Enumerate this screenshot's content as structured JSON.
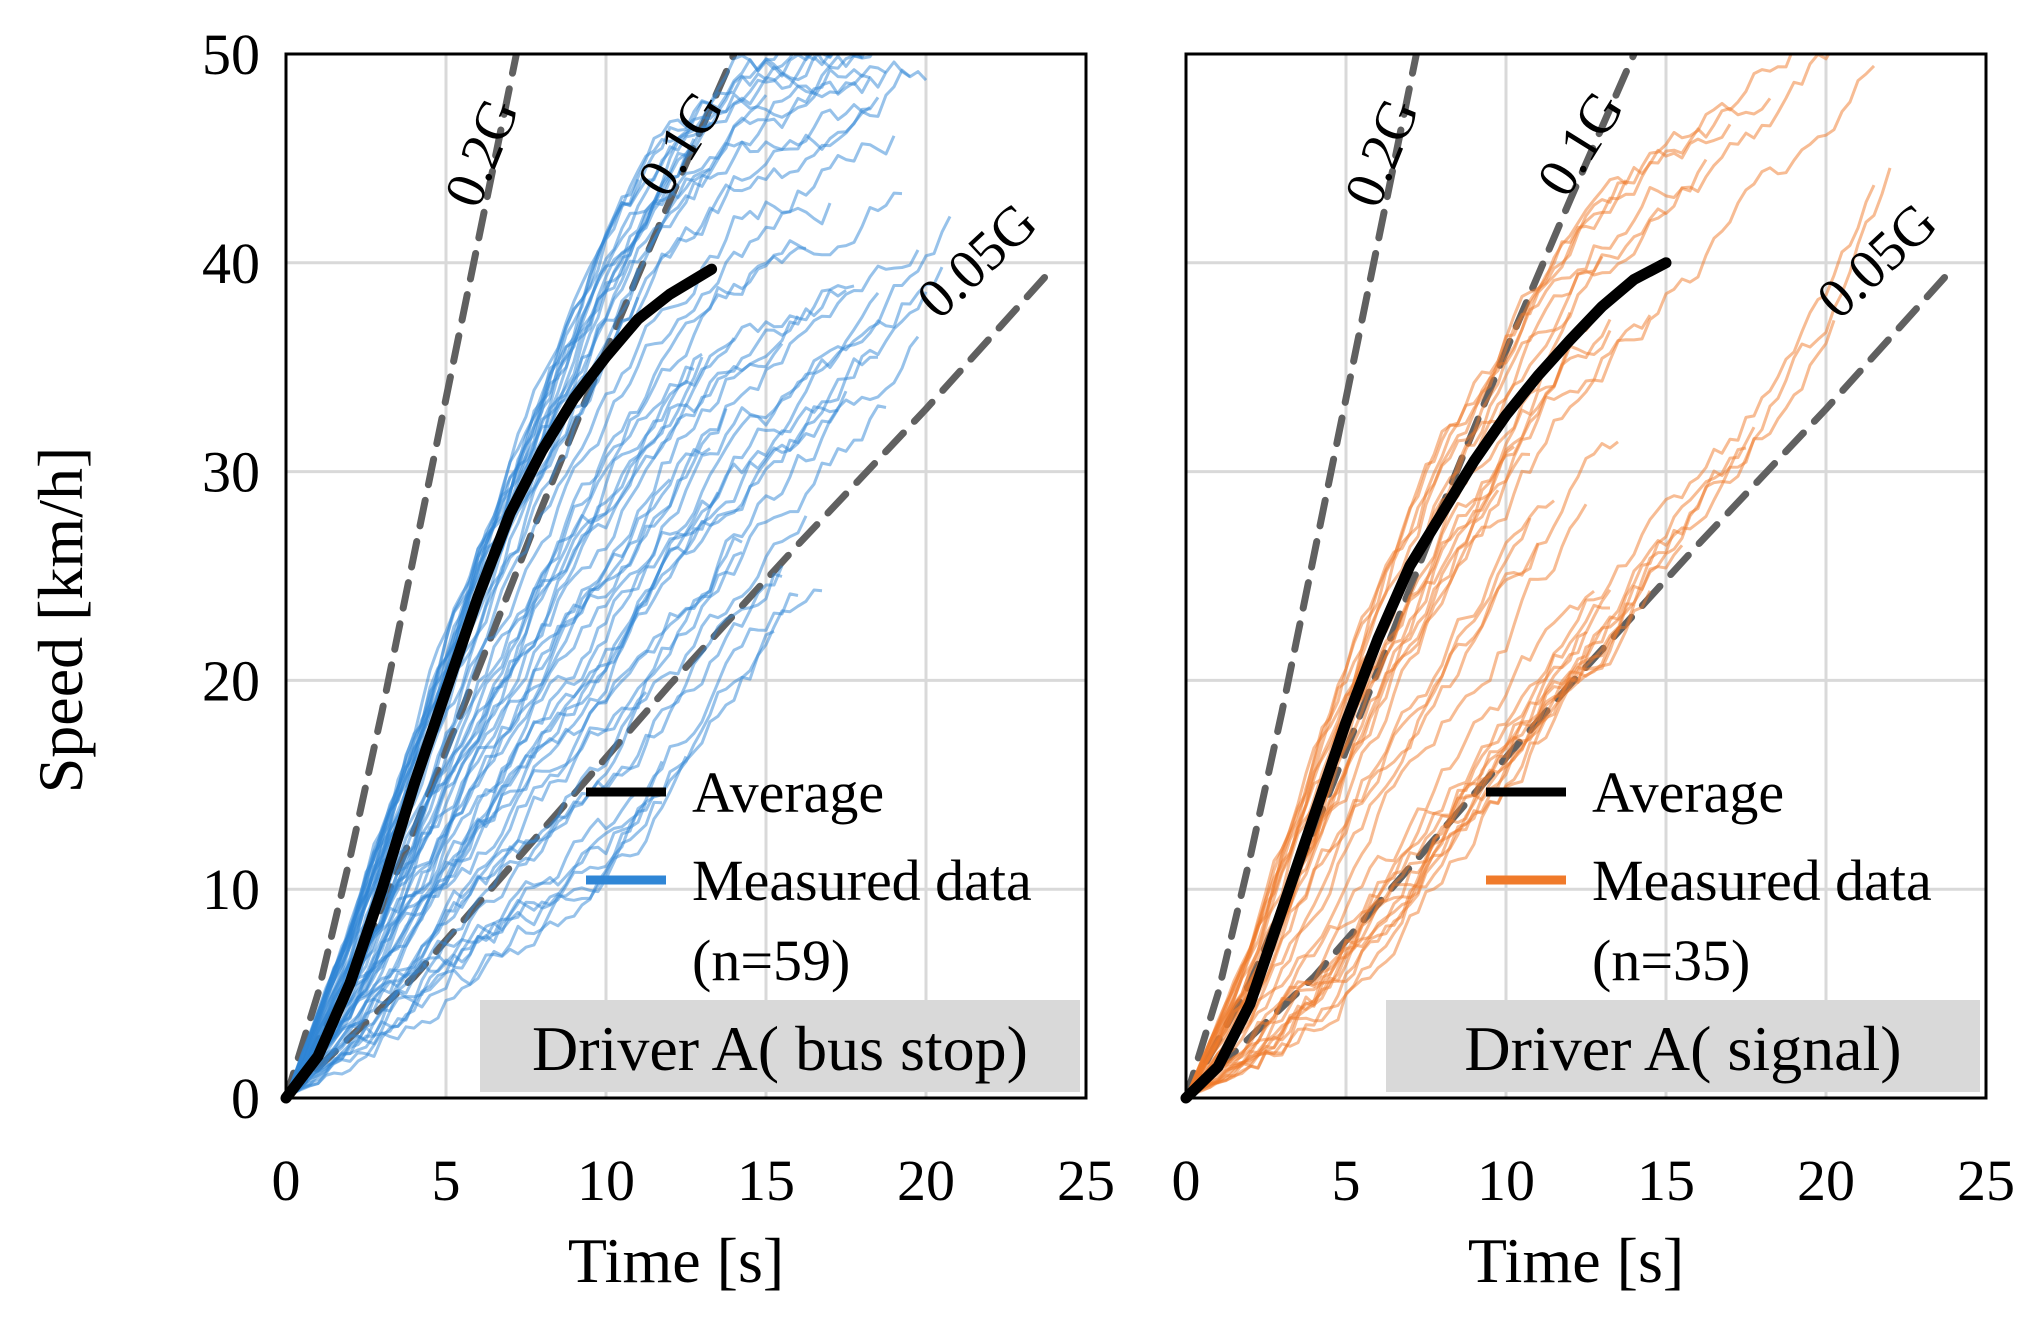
{
  "chart_data": {
    "type": "line",
    "ylabel": "Speed [km/h]",
    "xlabel": "Time [s]",
    "xlim": [
      0,
      25
    ],
    "ylim": [
      0,
      50
    ],
    "xticks": [
      "0",
      "5",
      "10",
      "15",
      "20",
      "25"
    ],
    "yticks": [
      "0",
      "10",
      "20",
      "30",
      "40",
      "50"
    ],
    "grid": true,
    "g_lines": [
      {
        "name": "0.2G",
        "label": "0.2G",
        "accel": 0.2,
        "x": [
          0,
          1,
          2,
          3,
          4,
          5,
          6,
          7.2
        ],
        "y": [
          0,
          5,
          11.5,
          18.5,
          26,
          33.5,
          41,
          50
        ]
      },
      {
        "name": "0.1G",
        "label": "0.1G",
        "accel": 0.1,
        "x": [
          0,
          2,
          4,
          6,
          8,
          10,
          12,
          14
        ],
        "y": [
          0,
          5.5,
          12.8,
          20.5,
          28.3,
          35.8,
          43,
          50
        ]
      },
      {
        "name": "0.05G",
        "label": "0.05G",
        "accel": 0.05,
        "x": [
          0,
          4,
          8,
          12,
          16,
          20,
          24
        ],
        "y": [
          0,
          5.8,
          12.8,
          19.8,
          26.5,
          33,
          39.8
        ]
      }
    ],
    "panels": [
      {
        "panel": "Driver A( bus stop)",
        "driver_label": "Driver A( bus stop)",
        "series_color": "#2f86d6",
        "legend": {
          "average": "Average",
          "measured": "Measured data",
          "n": "(n=59)"
        },
        "n": 59,
        "average": {
          "x": [
            0,
            1,
            2,
            3,
            4,
            5,
            6,
            7,
            8,
            9,
            10,
            11,
            12,
            13.3
          ],
          "y": [
            0,
            2,
            5.5,
            10,
            15,
            19.5,
            24,
            28,
            31,
            33.5,
            35.5,
            37.3,
            38.5,
            39.7
          ]
        },
        "measured_envelope": {
          "fastest": {
            "x": [
              0,
              2,
              4,
              6,
              8,
              10,
              12,
              14,
              16
            ],
            "y": [
              0,
              8,
              17,
              26,
              34,
              41,
              46,
              49,
              50
            ]
          },
          "slowest": {
            "x": [
              0,
              2,
              4,
              6,
              8,
              10,
              12,
              14,
              16,
              18,
              20,
              21
            ],
            "y": [
              0,
              2,
              4,
              6,
              8,
              10,
              14,
              18,
              22,
              26,
              31,
              34
            ]
          }
        }
      },
      {
        "panel": "Driver A( signal)",
        "driver_label": "Driver A( signal)",
        "series_color": "#f07a2a",
        "legend": {
          "average": "Average",
          "measured": "Measured data",
          "n": "(n=35)"
        },
        "n": 35,
        "average": {
          "x": [
            0,
            1,
            2,
            3,
            4,
            5,
            6,
            7,
            8,
            9,
            10,
            11,
            12,
            13,
            14,
            15
          ],
          "y": [
            0,
            1.5,
            4.5,
            9,
            13.5,
            18,
            22,
            25.5,
            28,
            30.5,
            32.7,
            34.6,
            36.3,
            37.9,
            39.2,
            40
          ]
        },
        "measured_envelope": {
          "fastest": {
            "x": [
              0,
              2,
              4,
              6,
              8,
              10,
              12,
              14,
              16,
              17.5
            ],
            "y": [
              0,
              7,
              16,
              24,
              31,
              36,
              41,
              44,
              46,
              48
            ]
          },
          "slowest": {
            "x": [
              0,
              2,
              4,
              6,
              8,
              10,
              12,
              14,
              16,
              18,
              20,
              22.5
            ],
            "y": [
              0,
              1.5,
              4,
              7.5,
              11,
              15,
              19,
              23,
              27,
              31,
              36,
              45
            ]
          }
        }
      }
    ]
  },
  "colors": {
    "average": "#000000",
    "guide": "#606060",
    "grid": "#d9d9d9",
    "label_box": "#d9d9d9"
  }
}
